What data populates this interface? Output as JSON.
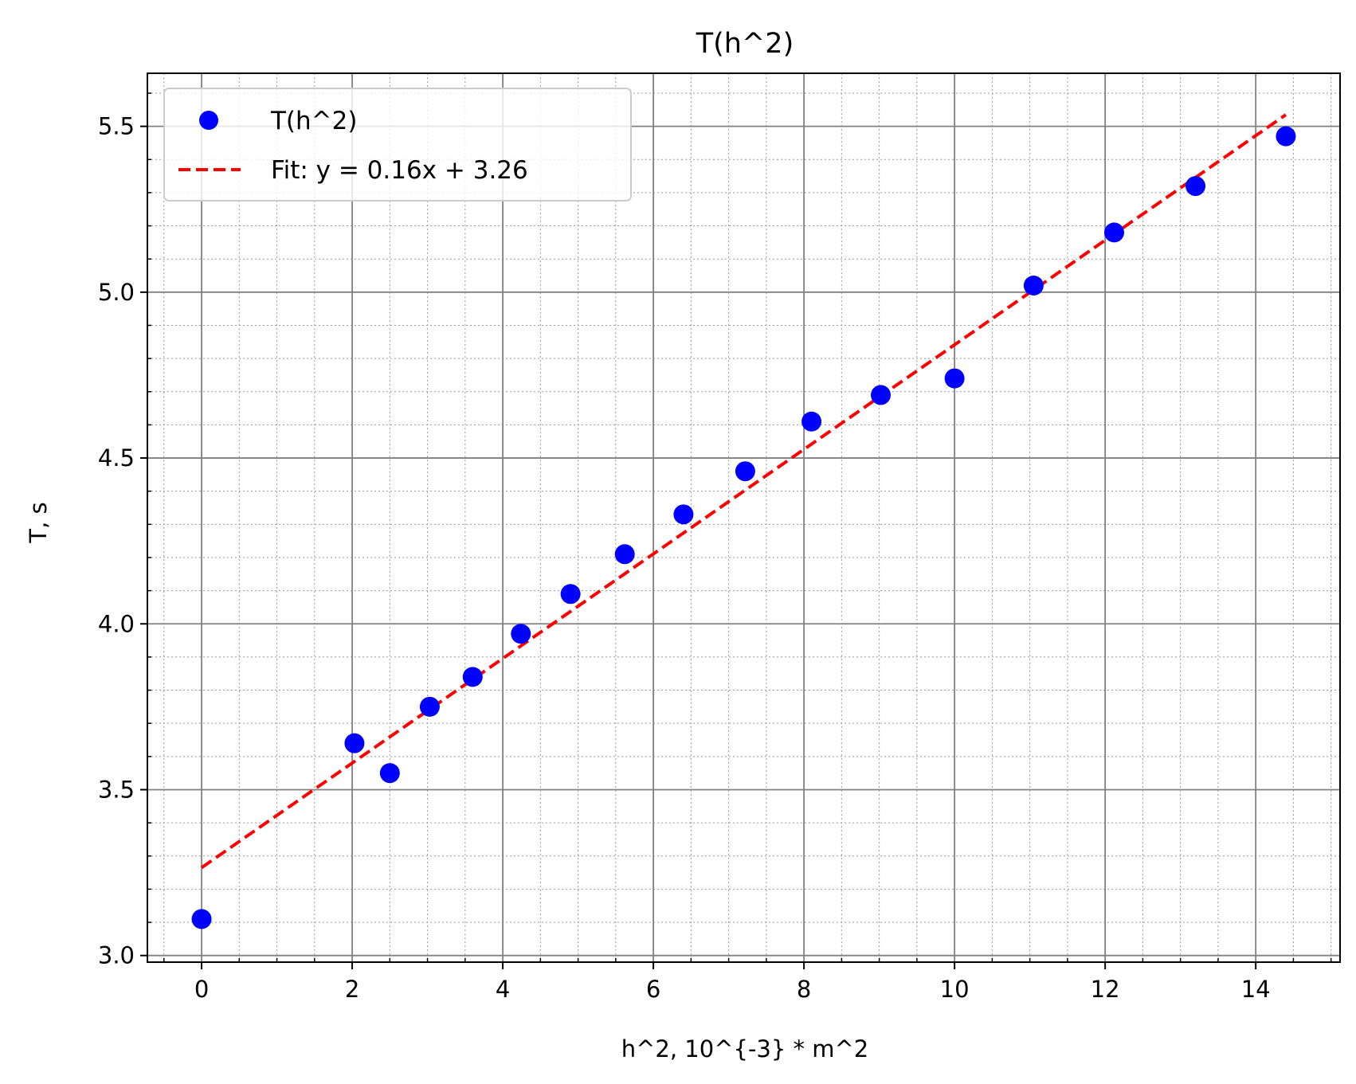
{
  "chart_data": {
    "type": "scatter",
    "title": "T(h^2)",
    "xlabel": "h^2, 10^{-3} * m^2",
    "ylabel": "T, s",
    "xlim": [
      -0.72,
      15.12
    ],
    "ylim": [
      2.98,
      5.66
    ],
    "xticks": [
      0,
      2,
      4,
      6,
      8,
      10,
      12,
      14
    ],
    "xtick_labels": [
      "0",
      "2",
      "4",
      "6",
      "8",
      "10",
      "12",
      "14"
    ],
    "yticks": [
      3.0,
      3.5,
      4.0,
      4.5,
      5.0,
      5.5
    ],
    "ytick_labels": [
      "3.0",
      "3.5",
      "4.0",
      "4.5",
      "5.0",
      "5.5"
    ],
    "grid": true,
    "minor_grid": true,
    "legend_position": "upper-left",
    "series": [
      {
        "name": "T(h^2)",
        "kind": "scatter",
        "color": "#0000ff",
        "x": [
          0.0,
          2.03,
          2.5,
          3.03,
          3.6,
          4.24,
          4.9,
          5.62,
          6.4,
          7.22,
          8.1,
          9.02,
          10.0,
          11.05,
          12.12,
          13.2,
          14.4
        ],
        "y": [
          3.11,
          3.64,
          3.55,
          3.75,
          3.84,
          3.97,
          4.09,
          4.21,
          4.33,
          4.46,
          4.61,
          4.69,
          4.74,
          5.02,
          5.18,
          5.32,
          5.47
        ]
      },
      {
        "name": "Fit: y = 0.16x + 3.26",
        "kind": "line",
        "style": "dashed",
        "color": "#ff0000",
        "x": [
          0.0,
          14.4
        ],
        "y": [
          3.265,
          5.535
        ]
      }
    ]
  }
}
